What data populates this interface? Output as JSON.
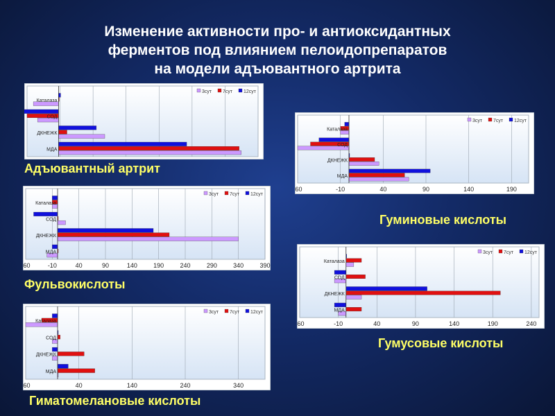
{
  "slide": {
    "title_lines": [
      "Изменение активности про- и антиоксидантных",
      "ферментов под влиянием пелоидопрепаратов",
      "на модели адъювантного артрита"
    ]
  },
  "colors": {
    "s3": "#cc99ff",
    "s7": "#e01010",
    "s12": "#1010dd",
    "plot_bg_top": "#ffffff",
    "plot_bg_bottom": "#d6e4f5",
    "grid": "#9aa4b0"
  },
  "chart_data": [
    {
      "type": "bar",
      "orientation": "horizontal",
      "caption": "Адъювантный артрит",
      "categories": [
        "Каталаза",
        "СОД",
        "ДКНЕЖК",
        "МДА"
      ],
      "series": [
        {
          "name": "3сут",
          "values": [
            -12,
            -10,
            22,
            87
          ]
        },
        {
          "name": "7сут",
          "values": [
            0,
            -15,
            4,
            86
          ]
        },
        {
          "name": "12сут",
          "values": [
            1,
            -18,
            18,
            61
          ]
        }
      ],
      "xlim": [
        -15,
        95
      ],
      "xticks": []
    },
    {
      "type": "bar",
      "orientation": "horizontal",
      "caption": "Гуминовые кислоты",
      "categories": [
        "Каталаза",
        "СОД",
        "ДКНЕЖК",
        "МДА"
      ],
      "series": [
        {
          "name": "3сут",
          "values": [
            -10,
            -60,
            35,
            70
          ]
        },
        {
          "name": "7сут",
          "values": [
            -10,
            -45,
            30,
            65
          ]
        },
        {
          "name": "12сут",
          "values": [
            -5,
            -35,
            0,
            95
          ]
        }
      ],
      "xlim": [
        -60,
        210
      ],
      "xticks": [
        -60,
        -10,
        40,
        90,
        140,
        190
      ]
    },
    {
      "type": "bar",
      "orientation": "horizontal",
      "caption": "Фульвокислоты",
      "categories": [
        "Каталаза",
        "СОД",
        "ДКНЕЖК",
        "МДА"
      ],
      "series": [
        {
          "name": "3сут",
          "values": [
            -10,
            15,
            340,
            -20
          ]
        },
        {
          "name": "7сут",
          "values": [
            -10,
            0,
            210,
            0
          ]
        },
        {
          "name": "12сут",
          "values": [
            -10,
            -45,
            180,
            -10
          ]
        }
      ],
      "xlim": [
        -60,
        390
      ],
      "xticks": [
        -60,
        -10,
        40,
        90,
        140,
        190,
        240,
        290,
        340,
        390
      ]
    },
    {
      "type": "bar",
      "orientation": "horizontal",
      "caption": "Гумусовые кислоты",
      "categories": [
        "Каталаза",
        "СОД",
        "ДКНЕЖК",
        "МДА"
      ],
      "series": [
        {
          "name": "3сут",
          "values": [
            10,
            -15,
            20,
            -10
          ]
        },
        {
          "name": "7сут",
          "values": [
            20,
            25,
            200,
            20
          ]
        },
        {
          "name": "12сут",
          "values": [
            0,
            -15,
            105,
            -15
          ]
        }
      ],
      "xlim": [
        -60,
        250
      ],
      "xticks": [
        -60,
        -10,
        40,
        90,
        140,
        190,
        240
      ]
    },
    {
      "type": "bar",
      "orientation": "horizontal",
      "caption": "Гиматомелановые кислоты",
      "categories": [
        "Каталаза",
        "СОД",
        "ДКНЕЖК",
        "МДА"
      ],
      "series": [
        {
          "name": "3сут",
          "values": [
            -60,
            -10,
            -10,
            0
          ]
        },
        {
          "name": "7сут",
          "values": [
            -30,
            5,
            50,
            70
          ]
        },
        {
          "name": "12сут",
          "values": [
            -10,
            0,
            -10,
            20
          ]
        }
      ],
      "xlim": [
        -60,
        390
      ],
      "xticks": [
        -60,
        40,
        140,
        240,
        340
      ]
    }
  ]
}
